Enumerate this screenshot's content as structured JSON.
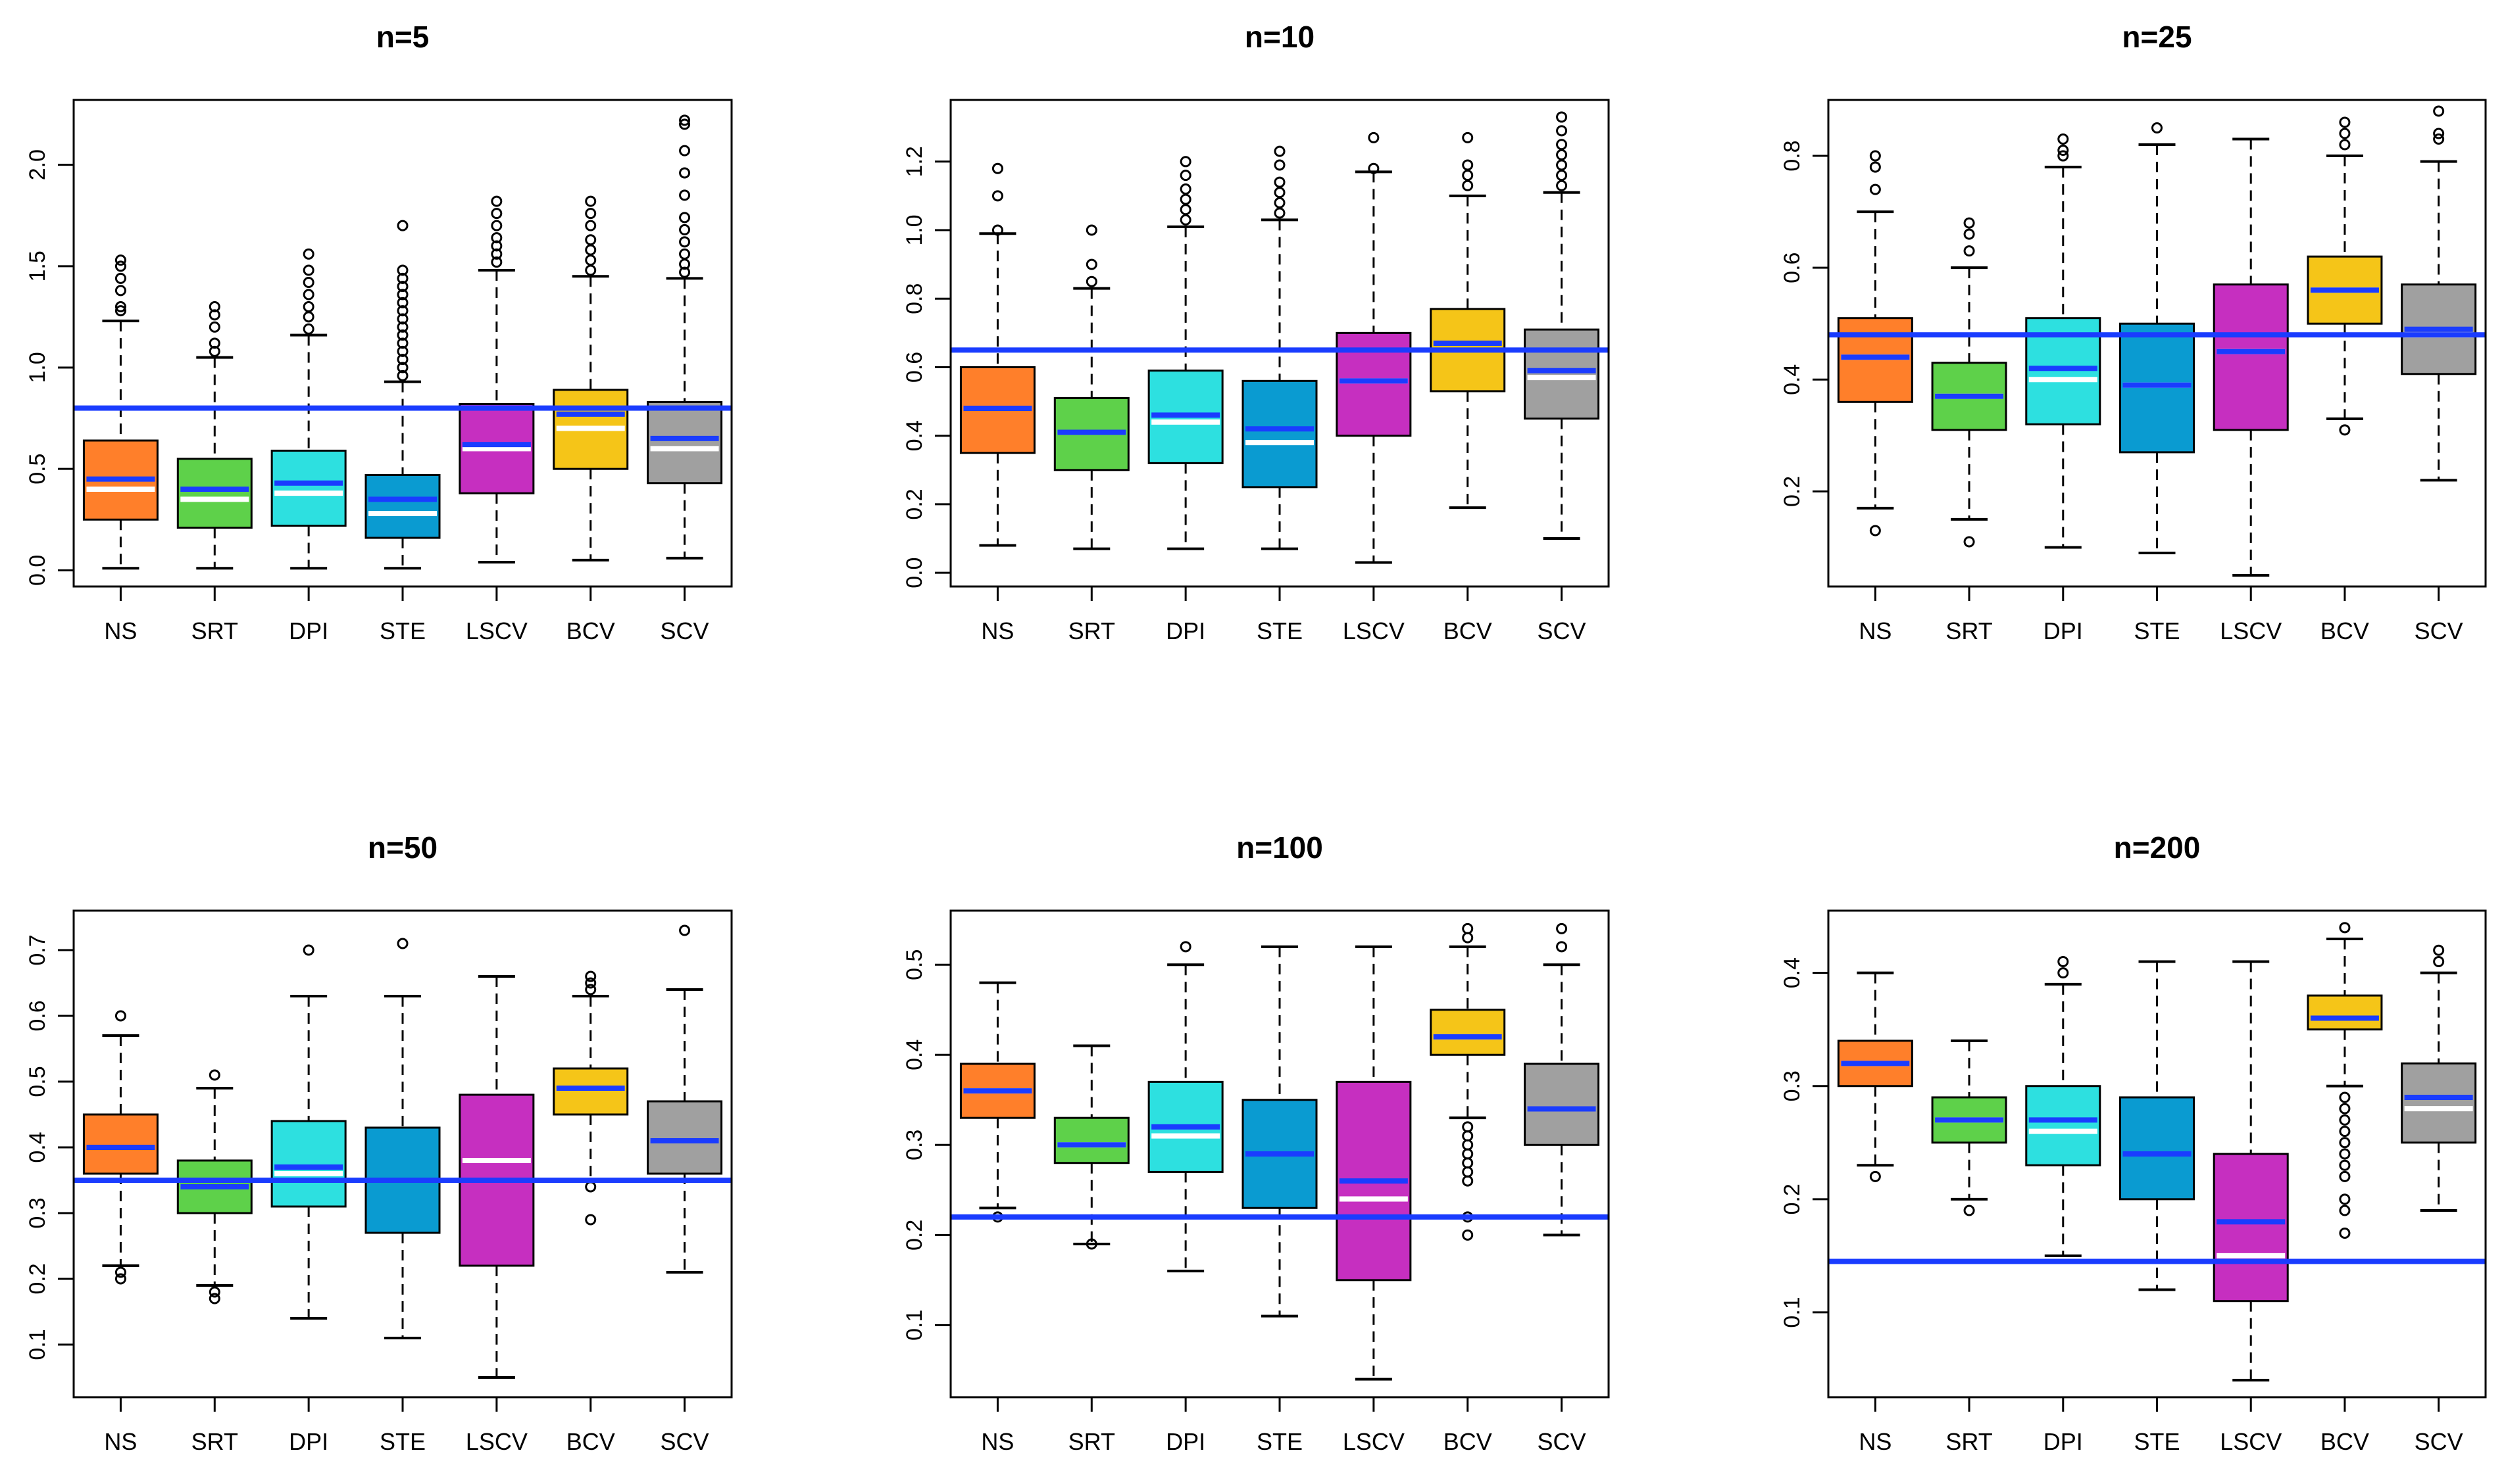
{
  "chart_data": [
    {
      "type": "box",
      "title": "n=5",
      "categories": [
        "NS",
        "SRT",
        "DPI",
        "STE",
        "LSCV",
        "BCV",
        "SCV"
      ],
      "colors": [
        "#FF7F2A",
        "#5ED14A",
        "#2DE0E0",
        "#0A9BD1",
        "#C62FC0",
        "#F5C518",
        "#A0A0A0"
      ],
      "ylim": [
        -0.08,
        2.32
      ],
      "yticks": [
        "0.0",
        "0.5",
        "1.0",
        "1.5",
        "2.0"
      ],
      "reference_line": 0.8,
      "boxes": [
        {
          "whisker_low": 0.01,
          "q1": 0.25,
          "median": 0.4,
          "mean": 0.45,
          "q3": 0.64,
          "whisker_high": 1.23,
          "outliers": [
            1.28,
            1.3,
            1.38,
            1.44,
            1.5,
            1.53
          ]
        },
        {
          "whisker_low": 0.01,
          "q1": 0.21,
          "median": 0.35,
          "mean": 0.4,
          "q3": 0.55,
          "whisker_high": 1.05,
          "outliers": [
            1.08,
            1.12,
            1.2,
            1.26,
            1.3
          ]
        },
        {
          "whisker_low": 0.01,
          "q1": 0.22,
          "median": 0.38,
          "mean": 0.43,
          "q3": 0.59,
          "whisker_high": 1.16,
          "outliers": [
            1.19,
            1.25,
            1.3,
            1.36,
            1.42,
            1.48,
            1.56
          ]
        },
        {
          "whisker_low": 0.01,
          "q1": 0.16,
          "median": 0.28,
          "mean": 0.35,
          "q3": 0.47,
          "whisker_high": 0.93,
          "outliers": [
            0.96,
            1.0,
            1.04,
            1.08,
            1.12,
            1.16,
            1.2,
            1.24,
            1.28,
            1.32,
            1.36,
            1.4,
            1.44,
            1.48,
            1.7
          ]
        },
        {
          "whisker_low": 0.04,
          "q1": 0.38,
          "median": 0.6,
          "mean": 0.62,
          "q3": 0.82,
          "whisker_high": 1.48,
          "outliers": [
            1.52,
            1.56,
            1.6,
            1.64,
            1.7,
            1.76,
            1.82
          ]
        },
        {
          "whisker_low": 0.05,
          "q1": 0.5,
          "median": 0.7,
          "mean": 0.77,
          "q3": 0.89,
          "whisker_high": 1.45,
          "outliers": [
            1.48,
            1.53,
            1.58,
            1.63,
            1.7,
            1.76,
            1.82
          ]
        },
        {
          "whisker_low": 0.06,
          "q1": 0.43,
          "median": 0.6,
          "mean": 0.65,
          "q3": 0.83,
          "whisker_high": 1.44,
          "outliers": [
            1.47,
            1.51,
            1.56,
            1.62,
            1.68,
            1.74,
            1.85,
            1.96,
            2.07,
            2.2,
            2.22
          ]
        }
      ]
    },
    {
      "type": "box",
      "title": "n=10",
      "categories": [
        "NS",
        "SRT",
        "DPI",
        "STE",
        "LSCV",
        "BCV",
        "SCV"
      ],
      "colors": [
        "#FF7F2A",
        "#5ED14A",
        "#2DE0E0",
        "#0A9BD1",
        "#C62FC0",
        "#F5C518",
        "#A0A0A0"
      ],
      "ylim": [
        -0.04,
        1.38
      ],
      "yticks": [
        "0.0",
        "0.2",
        "0.4",
        "0.6",
        "0.8",
        "1.0",
        "1.2"
      ],
      "reference_line": 0.65,
      "boxes": [
        {
          "whisker_low": 0.08,
          "q1": 0.35,
          "median": 0.48,
          "mean": 0.48,
          "q3": 0.6,
          "whisker_high": 0.99,
          "outliers": [
            1.0,
            1.1,
            1.18
          ]
        },
        {
          "whisker_low": 0.07,
          "q1": 0.3,
          "median": 0.41,
          "mean": 0.41,
          "q3": 0.51,
          "whisker_high": 0.83,
          "outliers": [
            0.85,
            0.9,
            1.0
          ]
        },
        {
          "whisker_low": 0.07,
          "q1": 0.32,
          "median": 0.44,
          "mean": 0.46,
          "q3": 0.59,
          "whisker_high": 1.01,
          "outliers": [
            1.03,
            1.06,
            1.09,
            1.12,
            1.16,
            1.2
          ]
        },
        {
          "whisker_low": 0.07,
          "q1": 0.25,
          "median": 0.38,
          "mean": 0.42,
          "q3": 0.56,
          "whisker_high": 1.03,
          "outliers": [
            1.05,
            1.08,
            1.11,
            1.14,
            1.19,
            1.23
          ]
        },
        {
          "whisker_low": 0.03,
          "q1": 0.4,
          "median": 0.56,
          "mean": 0.56,
          "q3": 0.7,
          "whisker_high": 1.17,
          "outliers": [
            1.18,
            1.27
          ]
        },
        {
          "whisker_low": 0.19,
          "q1": 0.53,
          "median": 0.67,
          "mean": 0.67,
          "q3": 0.77,
          "whisker_high": 1.1,
          "outliers": [
            1.13,
            1.16,
            1.19,
            1.27
          ]
        },
        {
          "whisker_low": 0.1,
          "q1": 0.45,
          "median": 0.57,
          "mean": 0.59,
          "q3": 0.71,
          "whisker_high": 1.11,
          "outliers": [
            1.13,
            1.16,
            1.19,
            1.22,
            1.25,
            1.29,
            1.33
          ]
        }
      ]
    },
    {
      "type": "box",
      "title": "n=25",
      "categories": [
        "NS",
        "SRT",
        "DPI",
        "STE",
        "LSCV",
        "BCV",
        "SCV"
      ],
      "colors": [
        "#FF7F2A",
        "#5ED14A",
        "#2DE0E0",
        "#0A9BD1",
        "#C62FC0",
        "#F5C518",
        "#A0A0A0"
      ],
      "ylim": [
        0.03,
        0.9
      ],
      "yticks": [
        "0.2",
        "0.4",
        "0.6",
        "0.8"
      ],
      "reference_line": 0.48,
      "boxes": [
        {
          "whisker_low": 0.17,
          "q1": 0.36,
          "median": 0.44,
          "mean": 0.44,
          "q3": 0.51,
          "whisker_high": 0.7,
          "outliers": [
            0.13,
            0.74,
            0.78,
            0.8
          ]
        },
        {
          "whisker_low": 0.15,
          "q1": 0.31,
          "median": 0.37,
          "mean": 0.37,
          "q3": 0.43,
          "whisker_high": 0.6,
          "outliers": [
            0.11,
            0.63,
            0.66,
            0.68
          ]
        },
        {
          "whisker_low": 0.1,
          "q1": 0.32,
          "median": 0.4,
          "mean": 0.42,
          "q3": 0.51,
          "whisker_high": 0.78,
          "outliers": [
            0.8,
            0.81,
            0.83
          ]
        },
        {
          "whisker_low": 0.09,
          "q1": 0.27,
          "median": 0.39,
          "mean": 0.39,
          "q3": 0.5,
          "whisker_high": 0.82,
          "outliers": [
            0.85
          ]
        },
        {
          "whisker_low": 0.05,
          "q1": 0.31,
          "median": 0.45,
          "mean": 0.45,
          "q3": 0.57,
          "whisker_high": 0.83,
          "outliers": []
        },
        {
          "whisker_low": 0.33,
          "q1": 0.5,
          "median": 0.56,
          "mean": 0.56,
          "q3": 0.62,
          "whisker_high": 0.8,
          "outliers": [
            0.31,
            0.82,
            0.84,
            0.86
          ]
        },
        {
          "whisker_low": 0.22,
          "q1": 0.41,
          "median": 0.48,
          "mean": 0.49,
          "q3": 0.57,
          "whisker_high": 0.79,
          "outliers": [
            0.83,
            0.84,
            0.88
          ]
        }
      ]
    },
    {
      "type": "box",
      "title": "n=50",
      "categories": [
        "NS",
        "SRT",
        "DPI",
        "STE",
        "LSCV",
        "BCV",
        "SCV"
      ],
      "colors": [
        "#FF7F2A",
        "#5ED14A",
        "#2DE0E0",
        "#0A9BD1",
        "#C62FC0",
        "#F5C518",
        "#A0A0A0"
      ],
      "ylim": [
        0.02,
        0.76
      ],
      "yticks": [
        "0.1",
        "0.2",
        "0.3",
        "0.4",
        "0.5",
        "0.6",
        "0.7"
      ],
      "reference_line": 0.35,
      "boxes": [
        {
          "whisker_low": 0.22,
          "q1": 0.36,
          "median": 0.4,
          "mean": 0.4,
          "q3": 0.45,
          "whisker_high": 0.57,
          "outliers": [
            0.2,
            0.21,
            0.6
          ]
        },
        {
          "whisker_low": 0.19,
          "q1": 0.3,
          "median": 0.34,
          "mean": 0.34,
          "q3": 0.38,
          "whisker_high": 0.49,
          "outliers": [
            0.17,
            0.18,
            0.51
          ]
        },
        {
          "whisker_low": 0.14,
          "q1": 0.31,
          "median": 0.36,
          "mean": 0.37,
          "q3": 0.44,
          "whisker_high": 0.63,
          "outliers": [
            0.7
          ]
        },
        {
          "whisker_low": 0.11,
          "q1": 0.27,
          "median": 0.35,
          "mean": 0.35,
          "q3": 0.43,
          "whisker_high": 0.63,
          "outliers": [
            0.71
          ]
        },
        {
          "whisker_low": 0.05,
          "q1": 0.22,
          "median": 0.38,
          "mean": 0.35,
          "q3": 0.48,
          "whisker_high": 0.66,
          "outliers": []
        },
        {
          "whisker_low": 0.35,
          "q1": 0.45,
          "median": 0.49,
          "mean": 0.49,
          "q3": 0.52,
          "whisker_high": 0.63,
          "outliers": [
            0.29,
            0.34,
            0.64,
            0.65,
            0.66
          ]
        },
        {
          "whisker_low": 0.21,
          "q1": 0.36,
          "median": 0.41,
          "mean": 0.41,
          "q3": 0.47,
          "whisker_high": 0.64,
          "outliers": [
            0.73
          ]
        }
      ]
    },
    {
      "type": "box",
      "title": "n=100",
      "categories": [
        "NS",
        "SRT",
        "DPI",
        "STE",
        "LSCV",
        "BCV",
        "SCV"
      ],
      "colors": [
        "#FF7F2A",
        "#5ED14A",
        "#2DE0E0",
        "#0A9BD1",
        "#C62FC0",
        "#F5C518",
        "#A0A0A0"
      ],
      "ylim": [
        0.02,
        0.56
      ],
      "yticks": [
        "0.1",
        "0.2",
        "0.3",
        "0.4",
        "0.5"
      ],
      "reference_line": 0.22,
      "boxes": [
        {
          "whisker_low": 0.23,
          "q1": 0.33,
          "median": 0.36,
          "mean": 0.36,
          "q3": 0.39,
          "whisker_high": 0.48,
          "outliers": [
            0.22
          ]
        },
        {
          "whisker_low": 0.19,
          "q1": 0.28,
          "median": 0.3,
          "mean": 0.3,
          "q3": 0.33,
          "whisker_high": 0.41,
          "outliers": [
            0.19
          ]
        },
        {
          "whisker_low": 0.16,
          "q1": 0.27,
          "median": 0.31,
          "mean": 0.32,
          "q3": 0.37,
          "whisker_high": 0.5,
          "outliers": [
            0.52
          ]
        },
        {
          "whisker_low": 0.11,
          "q1": 0.23,
          "median": 0.29,
          "mean": 0.29,
          "q3": 0.35,
          "whisker_high": 0.52,
          "outliers": []
        },
        {
          "whisker_low": 0.04,
          "q1": 0.15,
          "median": 0.24,
          "mean": 0.26,
          "q3": 0.37,
          "whisker_high": 0.52,
          "outliers": []
        },
        {
          "whisker_low": 0.33,
          "q1": 0.4,
          "median": 0.42,
          "mean": 0.42,
          "q3": 0.45,
          "whisker_high": 0.52,
          "outliers": [
            0.2,
            0.22,
            0.26,
            0.27,
            0.28,
            0.29,
            0.3,
            0.31,
            0.32,
            0.53,
            0.54
          ]
        },
        {
          "whisker_low": 0.2,
          "q1": 0.3,
          "median": 0.34,
          "mean": 0.34,
          "q3": 0.39,
          "whisker_high": 0.5,
          "outliers": [
            0.52,
            0.54
          ]
        }
      ]
    },
    {
      "type": "box",
      "title": "n=200",
      "categories": [
        "NS",
        "SRT",
        "DPI",
        "STE",
        "LSCV",
        "BCV",
        "SCV"
      ],
      "colors": [
        "#FF7F2A",
        "#5ED14A",
        "#2DE0E0",
        "#0A9BD1",
        "#C62FC0",
        "#F5C518",
        "#A0A0A0"
      ],
      "ylim": [
        0.025,
        0.455
      ],
      "yticks": [
        "0.1",
        "0.2",
        "0.3",
        "0.4"
      ],
      "reference_line": 0.145,
      "boxes": [
        {
          "whisker_low": 0.23,
          "q1": 0.3,
          "median": 0.32,
          "mean": 0.32,
          "q3": 0.34,
          "whisker_high": 0.4,
          "outliers": [
            0.22
          ]
        },
        {
          "whisker_low": 0.2,
          "q1": 0.25,
          "median": 0.27,
          "mean": 0.27,
          "q3": 0.29,
          "whisker_high": 0.34,
          "outliers": [
            0.19
          ]
        },
        {
          "whisker_low": 0.15,
          "q1": 0.23,
          "median": 0.26,
          "mean": 0.27,
          "q3": 0.3,
          "whisker_high": 0.39,
          "outliers": [
            0.4,
            0.41
          ]
        },
        {
          "whisker_low": 0.12,
          "q1": 0.2,
          "median": 0.24,
          "mean": 0.24,
          "q3": 0.29,
          "whisker_high": 0.41,
          "outliers": []
        },
        {
          "whisker_low": 0.04,
          "q1": 0.11,
          "median": 0.15,
          "mean": 0.18,
          "q3": 0.24,
          "whisker_high": 0.41,
          "outliers": []
        },
        {
          "whisker_low": 0.3,
          "q1": 0.35,
          "median": 0.36,
          "mean": 0.36,
          "q3": 0.38,
          "whisker_high": 0.43,
          "outliers": [
            0.17,
            0.19,
            0.2,
            0.22,
            0.23,
            0.24,
            0.25,
            0.26,
            0.27,
            0.28,
            0.29,
            0.44
          ]
        },
        {
          "whisker_low": 0.19,
          "q1": 0.25,
          "median": 0.28,
          "mean": 0.29,
          "q3": 0.32,
          "whisker_high": 0.4,
          "outliers": [
            0.41,
            0.42
          ]
        }
      ]
    }
  ]
}
